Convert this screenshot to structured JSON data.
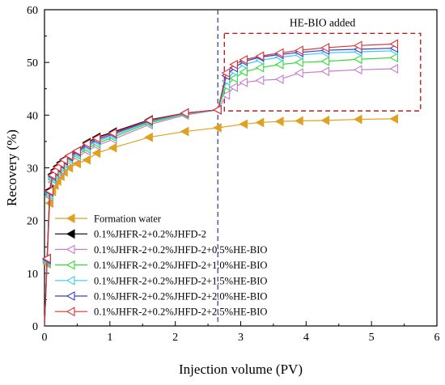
{
  "chart_data": {
    "type": "line",
    "xlabel": "Injection volume (PV)",
    "ylabel": "Recovery (%)",
    "xlim": [
      0,
      6
    ],
    "ylim": [
      0,
      60
    ],
    "xticks": [
      "0",
      "1",
      "2",
      "3",
      "4",
      "5",
      "6"
    ],
    "yticks": [
      "0",
      "10",
      "20",
      "30",
      "40",
      "50",
      "60"
    ],
    "grid": false,
    "legend_position": "bottom-left",
    "reference_line": {
      "x": 2.65,
      "style": "dashed",
      "color": "#2b3a8c"
    },
    "annotation": {
      "text": "HE-BIO added",
      "box": {
        "x_range": [
          2.75,
          5.75
        ],
        "y_range": [
          40.8,
          55.5
        ]
      },
      "box_color": "#b22222"
    },
    "series": [
      {
        "name": "Formation water",
        "color": "#e0a020",
        "marker": "triangle-left",
        "filled": true,
        "x": [
          0.0,
          0.04,
          0.08,
          0.12,
          0.16,
          0.2,
          0.25,
          0.3,
          0.38,
          0.5,
          0.65,
          0.8,
          1.05,
          1.6,
          2.15,
          2.65,
          3.05,
          3.3,
          3.6,
          3.9,
          4.3,
          4.8,
          5.35
        ],
        "y": [
          0.0,
          11.8,
          23.3,
          25.5,
          26.7,
          27.5,
          28.4,
          29.2,
          30.0,
          30.8,
          31.5,
          32.8,
          33.8,
          35.8,
          36.9,
          37.6,
          38.3,
          38.6,
          38.8,
          38.9,
          39.0,
          39.2,
          39.3
        ]
      },
      {
        "name": "0.1%JHFR-2+0.2%JHFD-2",
        "color": "#000000",
        "marker": "triangle-left",
        "filled": true,
        "x": [
          0.0,
          0.04,
          0.08,
          0.12,
          0.16,
          0.2,
          0.25,
          0.3,
          0.38,
          0.5,
          0.65,
          0.8,
          1.05,
          1.6,
          2.15,
          2.65
        ],
        "y": [
          0.0,
          12.8,
          25.8,
          28.8,
          29.6,
          30.3,
          31.0,
          31.6,
          32.3,
          33.2,
          34.8,
          35.8,
          36.8,
          39.1,
          40.4,
          41.0
        ]
      },
      {
        "name": "0.1%JHFR-2+0.2%JHFD-2+0.5%HE-BIO",
        "color": "#c77ad1",
        "marker": "triangle-left",
        "filled": false,
        "x": [
          0.0,
          0.04,
          0.08,
          0.12,
          0.16,
          0.2,
          0.25,
          0.3,
          0.38,
          0.5,
          0.65,
          0.8,
          1.05,
          1.6,
          2.15,
          2.65,
          2.78,
          2.9,
          3.05,
          3.3,
          3.6,
          3.9,
          4.3,
          4.8,
          5.35
        ],
        "y": [
          0.0,
          12.0,
          24.5,
          27.3,
          28.2,
          28.9,
          29.6,
          30.3,
          31.2,
          32.0,
          33.2,
          34.2,
          35.4,
          38.2,
          40.0,
          41.0,
          43.8,
          45.3,
          46.2,
          46.6,
          46.8,
          48.0,
          48.3,
          48.6,
          48.8
        ]
      },
      {
        "name": "0.1%JHFR-2+0.2%JHFD-2+1.0%HE-BIO",
        "color": "#33dd33",
        "marker": "triangle-left",
        "filled": false,
        "x": [
          0.0,
          0.04,
          0.08,
          0.12,
          0.16,
          0.2,
          0.25,
          0.3,
          0.38,
          0.5,
          0.65,
          0.8,
          1.05,
          1.6,
          2.15,
          2.65,
          2.78,
          2.9,
          3.05,
          3.3,
          3.6,
          3.9,
          4.3,
          4.8,
          5.35
        ],
        "y": [
          0.0,
          12.2,
          24.8,
          27.8,
          28.6,
          29.3,
          30.0,
          30.7,
          31.6,
          32.4,
          33.6,
          34.6,
          35.8,
          38.5,
          40.2,
          41.0,
          45.5,
          47.0,
          48.2,
          49.0,
          49.6,
          50.0,
          50.2,
          50.6,
          50.9
        ]
      },
      {
        "name": "0.1%JHFR-2+0.2%JHFD-2+1.5%HE-BIO",
        "color": "#33ccee",
        "marker": "triangle-left",
        "filled": false,
        "x": [
          0.0,
          0.04,
          0.08,
          0.12,
          0.16,
          0.2,
          0.25,
          0.3,
          0.38,
          0.5,
          0.65,
          0.8,
          1.05,
          1.6,
          2.15,
          2.65,
          2.78,
          2.9,
          3.05,
          3.3,
          3.6,
          3.9,
          4.3,
          4.8,
          5.35
        ],
        "y": [
          0.0,
          12.4,
          25.1,
          28.1,
          28.9,
          29.6,
          30.3,
          31.0,
          31.9,
          32.7,
          34.0,
          35.0,
          36.1,
          38.7,
          40.3,
          41.0,
          46.5,
          48.3,
          49.6,
          50.4,
          51.0,
          51.4,
          51.8,
          52.0,
          52.2
        ]
      },
      {
        "name": "0.1%JHFR-2+0.2%JHFD-2+2.0%HE-BIO",
        "color": "#3a3ad0",
        "marker": "triangle-left",
        "filled": false,
        "x": [
          0.0,
          0.04,
          0.08,
          0.12,
          0.16,
          0.2,
          0.25,
          0.3,
          0.38,
          0.5,
          0.65,
          0.8,
          1.05,
          1.6,
          2.15,
          2.65,
          2.78,
          2.9,
          3.05,
          3.3,
          3.6,
          3.9,
          4.3,
          4.8,
          5.35
        ],
        "y": [
          0.0,
          12.6,
          25.4,
          28.4,
          29.2,
          29.9,
          30.6,
          31.3,
          32.1,
          33.0,
          34.3,
          35.3,
          36.4,
          38.9,
          40.4,
          41.0,
          47.5,
          49.0,
          50.2,
          51.0,
          51.5,
          51.9,
          52.3,
          52.5,
          52.7
        ]
      },
      {
        "name": "0.1%JHFR-2+0.2%JHFD-2+2.5%HE-BIO",
        "color": "#dd3333",
        "marker": "triangle-left",
        "filled": false,
        "x": [
          0.0,
          0.04,
          0.08,
          0.12,
          0.16,
          0.2,
          0.25,
          0.3,
          0.38,
          0.5,
          0.65,
          0.8,
          1.05,
          1.6,
          2.15,
          2.65,
          2.78,
          2.9,
          3.05,
          3.3,
          3.6,
          3.9,
          4.3,
          4.8,
          5.35
        ],
        "y": [
          0.0,
          12.8,
          25.6,
          28.6,
          29.4,
          30.1,
          30.8,
          31.5,
          32.3,
          33.2,
          34.6,
          35.6,
          36.6,
          39.0,
          40.4,
          41.0,
          48.0,
          49.6,
          50.5,
          51.2,
          51.8,
          52.3,
          52.8,
          53.2,
          53.5
        ]
      }
    ]
  }
}
